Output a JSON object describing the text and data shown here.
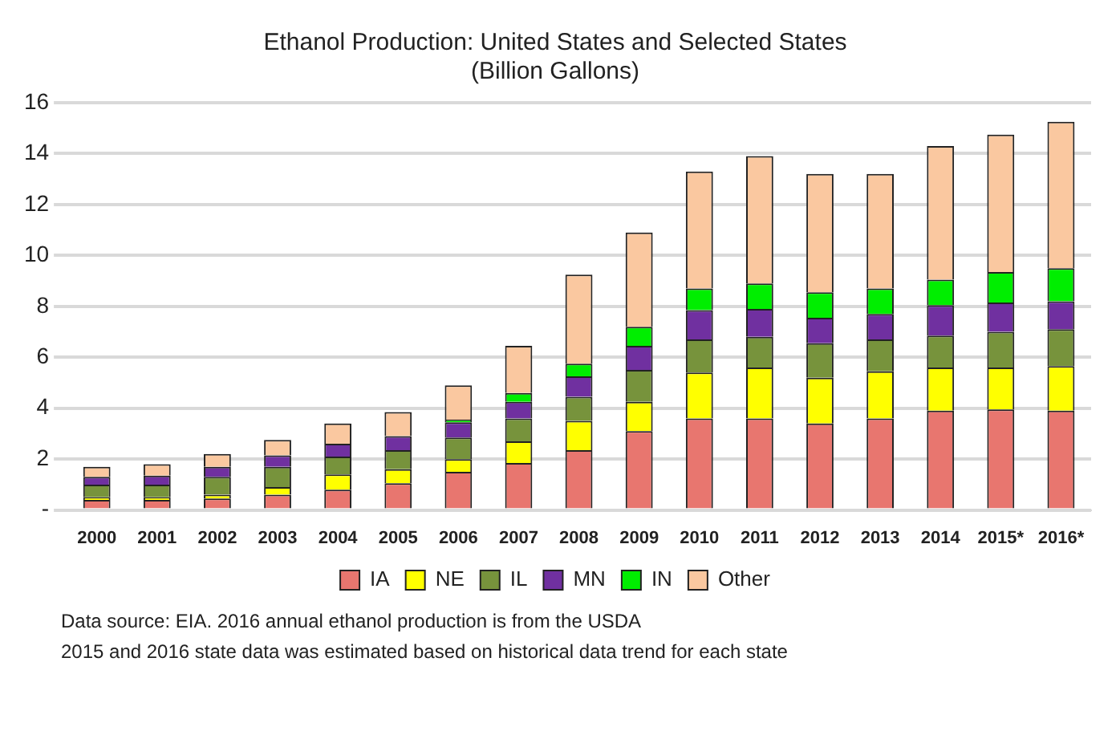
{
  "chart_data": {
    "type": "bar",
    "title": "Ethanol Production: United States and Selected States",
    "subtitle": "(Billion Gallons)",
    "categories": [
      "2000",
      "2001",
      "2002",
      "2003",
      "2004",
      "2005",
      "2006",
      "2007",
      "2008",
      "2009",
      "2010",
      "2011",
      "2012",
      "2013",
      "2014",
      "2015*",
      "2016*"
    ],
    "stacked": true,
    "ylim": [
      0,
      16
    ],
    "yticks": [
      {
        "value": 0,
        "label": "-"
      },
      2,
      4,
      6,
      8,
      10,
      12,
      14,
      16
    ],
    "grid": "y",
    "legend": "bottom",
    "series": [
      {
        "name": "IA",
        "color": "#e8766f",
        "values": [
          0.4,
          0.4,
          0.45,
          0.6,
          0.8,
          1.05,
          1.5,
          1.85,
          2.35,
          3.1,
          3.6,
          3.6,
          3.4,
          3.6,
          3.9,
          3.95,
          3.9
        ]
      },
      {
        "name": "NE",
        "color": "#ffff00",
        "values": [
          0.1,
          0.1,
          0.15,
          0.3,
          0.6,
          0.55,
          0.5,
          0.85,
          1.15,
          1.15,
          1.8,
          2.0,
          1.8,
          1.85,
          1.7,
          1.65,
          1.75
        ]
      },
      {
        "name": "IL",
        "color": "#77933c",
        "values": [
          0.5,
          0.5,
          0.7,
          0.8,
          0.7,
          0.75,
          0.85,
          0.9,
          0.95,
          1.25,
          1.3,
          1.2,
          1.35,
          1.25,
          1.25,
          1.4,
          1.45
        ]
      },
      {
        "name": "MN",
        "color": "#7030a0",
        "values": [
          0.3,
          0.35,
          0.4,
          0.45,
          0.5,
          0.55,
          0.6,
          0.65,
          0.8,
          0.95,
          1.15,
          1.1,
          1.0,
          1.0,
          1.2,
          1.15,
          1.1
        ]
      },
      {
        "name": "IN",
        "color": "#00ee00",
        "values": [
          null,
          null,
          null,
          null,
          null,
          null,
          0.1,
          0.35,
          0.5,
          0.75,
          0.85,
          1.0,
          1.0,
          1.0,
          1.0,
          1.2,
          1.3
        ]
      },
      {
        "name": "Other",
        "color": "#fac8a0",
        "values": [
          0.4,
          0.45,
          0.5,
          0.6,
          0.8,
          0.95,
          1.35,
          1.85,
          3.5,
          3.7,
          4.6,
          5.0,
          4.65,
          4.5,
          5.25,
          5.4,
          5.75
        ]
      }
    ],
    "annotations": [
      "Data source: EIA. 2016 annual ethanol production is from the USDA",
      "2015 and 2016 state data was estimated based on historical data trend for each state"
    ]
  }
}
